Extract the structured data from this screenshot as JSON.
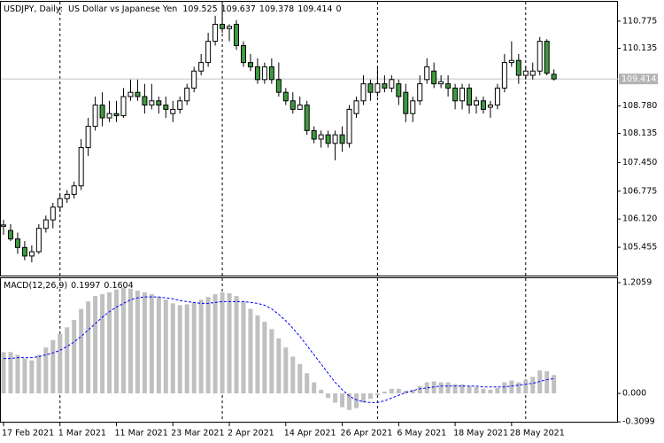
{
  "chart_data": [
    {
      "type": "candlestick",
      "title": "USDJPY, Daily:",
      "subtitle": "US Dollar vs Japanese Yen",
      "spread": 0,
      "categories": [
        "17 Feb 2021",
        null,
        null,
        null,
        null,
        null,
        null,
        null,
        "1 Mar 2021",
        null,
        null,
        null,
        null,
        null,
        null,
        null,
        "11 Mar 2021",
        null,
        null,
        null,
        null,
        null,
        null,
        null,
        "23 Mar 2021",
        null,
        null,
        null,
        null,
        null,
        null,
        null,
        "2 Apr 2021",
        null,
        null,
        null,
        null,
        null,
        null,
        null,
        "14 Apr 2021",
        null,
        null,
        null,
        null,
        null,
        null,
        null,
        "26 Apr 2021",
        null,
        null,
        null,
        null,
        null,
        null,
        null,
        "6 May 2021",
        null,
        null,
        null,
        null,
        null,
        null,
        null,
        "18 May 2021",
        null,
        null,
        null,
        null,
        null,
        null,
        null,
        "28 May 2021",
        null,
        null,
        null,
        null,
        null,
        null
      ],
      "open": [
        105.95,
        105.85,
        105.65,
        105.45,
        105.25,
        105.35,
        105.9,
        106.1,
        106.4,
        106.6,
        106.7,
        106.9,
        107.8,
        108.3,
        108.8,
        108.5,
        108.6,
        108.55,
        109.0,
        109.1,
        109.0,
        108.8,
        108.9,
        108.8,
        108.6,
        108.7,
        108.9,
        109.2,
        109.6,
        109.8,
        110.3,
        110.7,
        110.6,
        110.7,
        110.2,
        109.8,
        109.7,
        109.4,
        109.7,
        109.4,
        109.1,
        108.9,
        108.7,
        108.8,
        108.2,
        108.0,
        108.1,
        107.9,
        108.1,
        107.9,
        108.6,
        108.9,
        109.3,
        109.1,
        109.3,
        109.2,
        109.3,
        109.1,
        108.6,
        108.9,
        109.4,
        109.6,
        109.3,
        109.3,
        109.2,
        108.9,
        109.2,
        108.8,
        108.9,
        108.75,
        108.8,
        109.2,
        109.8,
        109.85,
        109.5,
        109.5,
        109.6,
        110.3,
        109.525
      ],
      "high": [
        106.1,
        106.0,
        105.8,
        105.6,
        105.5,
        106.0,
        106.2,
        106.5,
        106.7,
        106.8,
        107.0,
        108.0,
        108.5,
        109.0,
        109.1,
        108.9,
        108.9,
        109.2,
        109.4,
        109.4,
        109.3,
        109.3,
        109.0,
        109.0,
        108.9,
        109.0,
        109.3,
        109.7,
        110.0,
        110.5,
        110.9,
        111.2,
        110.7,
        110.8,
        110.3,
        110.0,
        109.9,
        109.8,
        109.9,
        109.8,
        109.2,
        109.1,
        109.0,
        108.9,
        108.3,
        108.2,
        108.2,
        108.2,
        108.3,
        108.8,
        109.0,
        109.5,
        109.4,
        109.7,
        109.5,
        109.5,
        109.4,
        109.3,
        109.0,
        109.5,
        109.9,
        109.8,
        109.5,
        109.5,
        109.3,
        109.3,
        109.3,
        109.0,
        109.0,
        108.9,
        109.3,
        110.0,
        110.3,
        110.0,
        109.7,
        109.8,
        110.4,
        110.35,
        109.637
      ],
      "low": [
        105.75,
        105.6,
        105.3,
        105.15,
        105.1,
        105.3,
        105.8,
        105.9,
        106.3,
        106.5,
        106.6,
        106.8,
        107.6,
        108.2,
        108.3,
        108.4,
        108.4,
        108.5,
        108.9,
        108.9,
        108.6,
        108.7,
        108.6,
        108.5,
        108.4,
        108.6,
        108.8,
        109.1,
        109.5,
        109.7,
        110.2,
        110.5,
        110.3,
        110.1,
        109.7,
        109.6,
        109.3,
        109.3,
        109.3,
        109.0,
        108.8,
        108.6,
        108.7,
        108.1,
        107.9,
        107.8,
        107.8,
        107.5,
        107.7,
        107.8,
        108.5,
        108.8,
        108.9,
        109.0,
        109.1,
        109.1,
        108.8,
        108.4,
        108.4,
        108.8,
        109.3,
        109.2,
        109.2,
        109.0,
        108.7,
        108.7,
        108.6,
        108.6,
        108.6,
        108.5,
        108.7,
        109.1,
        109.7,
        109.3,
        109.4,
        109.4,
        109.5,
        109.5,
        109.378
      ],
      "close": [
        105.98,
        105.65,
        105.45,
        105.25,
        105.35,
        105.9,
        106.1,
        106.4,
        106.6,
        106.7,
        106.9,
        107.8,
        108.3,
        108.8,
        108.5,
        108.6,
        108.55,
        109.0,
        109.1,
        109.0,
        108.8,
        108.9,
        108.8,
        108.7,
        108.7,
        108.9,
        109.2,
        109.6,
        109.8,
        110.3,
        110.7,
        110.6,
        110.65,
        110.2,
        109.8,
        109.7,
        109.4,
        109.7,
        109.4,
        109.1,
        108.9,
        108.7,
        108.8,
        108.2,
        108.0,
        108.1,
        107.9,
        108.1,
        107.9,
        108.7,
        108.9,
        109.3,
        109.1,
        109.3,
        109.2,
        109.4,
        109.0,
        108.6,
        108.9,
        109.3,
        109.7,
        109.3,
        109.35,
        109.2,
        108.9,
        109.2,
        108.8,
        108.9,
        108.7,
        108.8,
        109.2,
        109.8,
        109.85,
        109.5,
        109.6,
        109.6,
        110.3,
        109.55,
        109.414
      ],
      "up_color": "#ffffff",
      "down_color": "#3f9a3f",
      "outline_color": "#000000",
      "price_line_color": "#c0c0c0",
      "ylim": [
        104.79,
        111.23
      ],
      "yticks": [
        110.775,
        110.135,
        {
          "value": 108.78,
          "label": "108.780"
        },
        108.135,
        {
          "value": 107.45,
          "label": "107.450"
        },
        106.775,
        {
          "value": 106.12,
          "label": "106.120"
        },
        105.455
      ]
    },
    {
      "type": "macd",
      "title": "MACD(12,26,9)",
      "series": [
        {
          "kind": "histogram",
          "color": "#c0c0c0",
          "values": [
            0.45,
            0.45,
            0.42,
            0.38,
            0.36,
            0.42,
            0.5,
            0.58,
            0.65,
            0.72,
            0.8,
            0.92,
            1.0,
            1.06,
            1.08,
            1.1,
            1.13,
            1.15,
            1.14,
            1.12,
            1.1,
            1.08,
            1.05,
            1.02,
            0.98,
            0.96,
            0.97,
            0.99,
            1.02,
            1.05,
            1.08,
            1.1,
            1.09,
            1.06,
            1.0,
            0.92,
            0.85,
            0.78,
            0.7,
            0.6,
            0.5,
            0.4,
            0.32,
            0.22,
            0.12,
            0.04,
            -0.05,
            -0.1,
            -0.15,
            -0.18,
            -0.16,
            -0.1,
            -0.06,
            -0.02,
            0.02,
            0.05,
            0.05,
            0.03,
            0.04,
            0.08,
            0.12,
            0.13,
            0.12,
            0.12,
            0.1,
            0.1,
            0.08,
            0.07,
            0.05,
            0.04,
            0.06,
            0.12,
            0.14,
            0.12,
            0.15,
            0.18,
            0.25,
            0.24,
            0.1997
          ]
        },
        {
          "kind": "dashed-line",
          "color": "#0000ff",
          "values": [
            0.38,
            0.38,
            0.39,
            0.39,
            0.39,
            0.4,
            0.42,
            0.44,
            0.47,
            0.51,
            0.56,
            0.62,
            0.69,
            0.76,
            0.83,
            0.89,
            0.94,
            0.98,
            1.02,
            1.04,
            1.05,
            1.05,
            1.05,
            1.04,
            1.03,
            1.01,
            1.0,
            0.99,
            0.98,
            0.98,
            0.99,
            1.0,
            1.0,
            1.0,
            1.0,
            0.99,
            0.98,
            0.96,
            0.92,
            0.86,
            0.79,
            0.71,
            0.62,
            0.52,
            0.42,
            0.32,
            0.22,
            0.12,
            0.04,
            -0.03,
            -0.07,
            -0.09,
            -0.1,
            -0.1,
            -0.08,
            -0.05,
            -0.02,
            0.01,
            0.03,
            0.05,
            0.06,
            0.07,
            0.08,
            0.08,
            0.08,
            0.08,
            0.08,
            0.08,
            0.07,
            0.07,
            0.07,
            0.07,
            0.08,
            0.09,
            0.1,
            0.11,
            0.13,
            0.15,
            0.1604
          ]
        }
      ],
      "ylim": [
        -0.318,
        1.254
      ],
      "yticks": [
        1.2059,
        {
          "value": 0,
          "label": "0.000"
        },
        -0.3099
      ]
    }
  ]
}
